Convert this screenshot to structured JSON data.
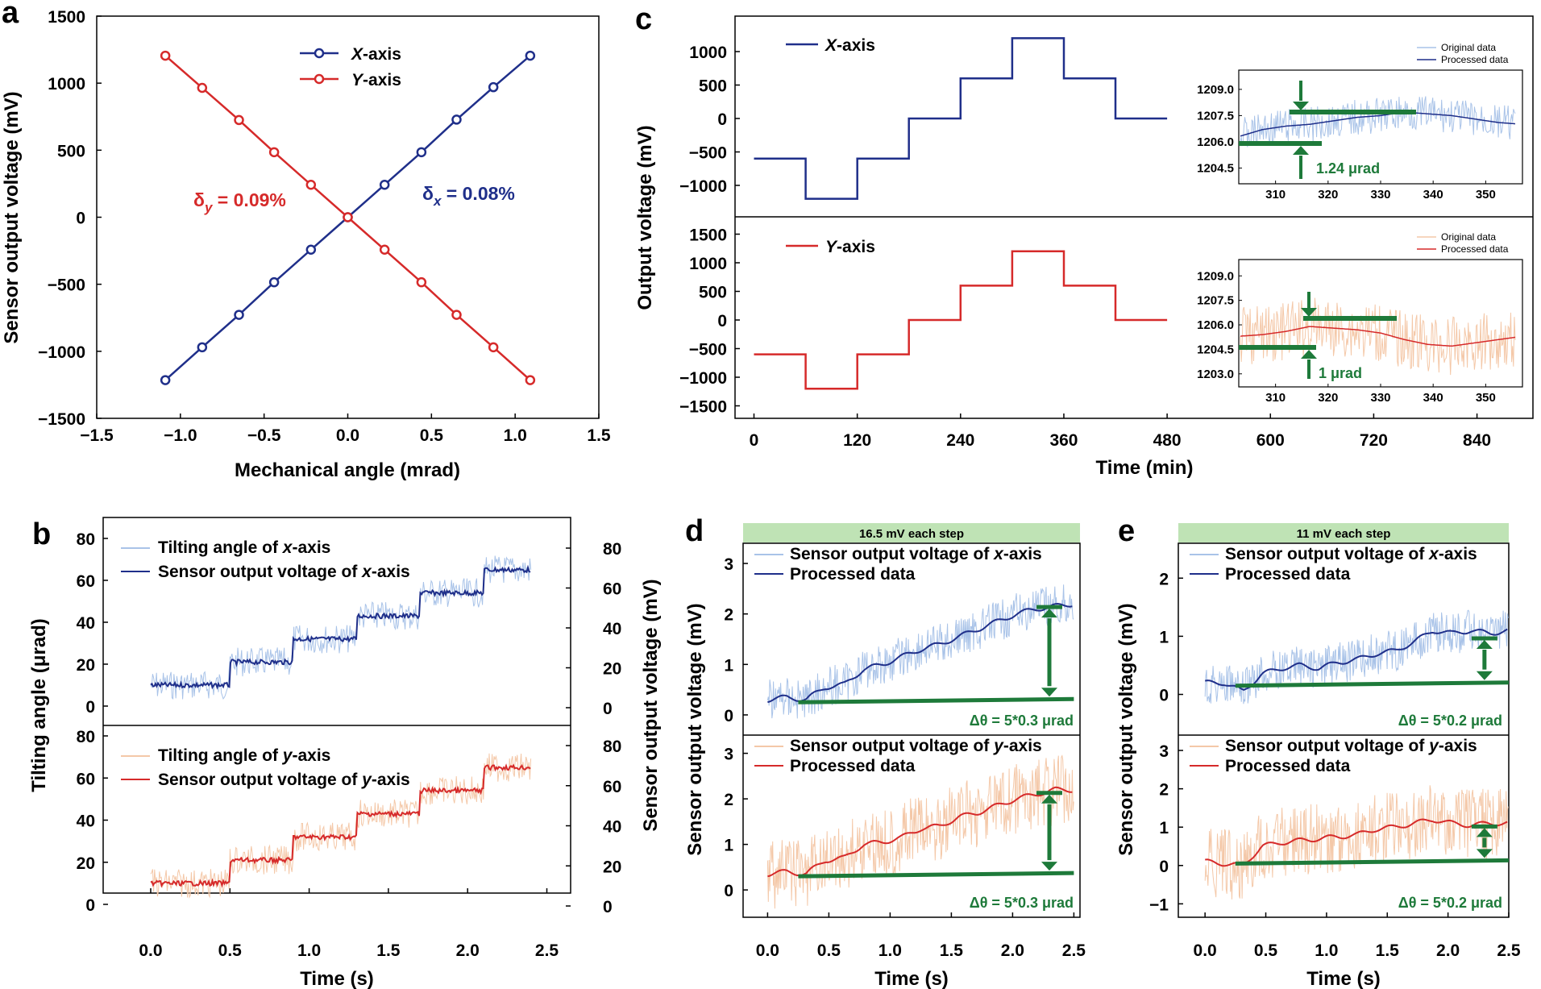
{
  "colors": {
    "blue": "#1f2f8a",
    "red": "#d62a2a",
    "lightblue": "#a9c3e8",
    "lightorange": "#f4c8a8",
    "green": "#1e7a3a",
    "banner": "#bfe3b5"
  },
  "chart_data": [
    {
      "id": "a",
      "type": "line",
      "panel_label": "a",
      "xlabel": "Mechanical angle (mrad)",
      "ylabel": "Sensor output voltage (mV)",
      "xlim": [
        -1.5,
        1.5
      ],
      "ylim": [
        -1500,
        1500
      ],
      "xticks": [
        "−1.5",
        "−1.0",
        "−0.5",
        "0.0",
        "0.5",
        "1.0",
        "1.5"
      ],
      "yticks": [
        "1500",
        "1000",
        "500",
        "0",
        "−500",
        "−1000",
        "−1500"
      ],
      "x": [
        -1.09,
        -0.87,
        -0.65,
        -0.44,
        -0.22,
        0.0,
        0.22,
        0.44,
        0.65,
        0.87,
        1.09
      ],
      "series": [
        {
          "name_italic": "X",
          "name_rest": "-axis",
          "color": "blue",
          "values": [
            -1215,
            -970,
            -728,
            -485,
            -242,
            0,
            242,
            485,
            728,
            970,
            1205
          ]
        },
        {
          "name_italic": "Y",
          "name_rest": "-axis",
          "color": "red",
          "values": [
            1205,
            965,
            725,
            485,
            242,
            0,
            -242,
            -485,
            -728,
            -970,
            -1215
          ]
        }
      ],
      "annotations": {
        "delta_y": {
          "sym": "δ",
          "sub": "y",
          "val": " = 0.09%"
        },
        "delta_x": {
          "sym": "δ",
          "sub": "x",
          "val": " = 0.08%"
        }
      }
    },
    {
      "id": "b",
      "type": "line",
      "panel_label": "b",
      "xlabel": "Time (s)",
      "ylabel_left": "Tilting angle (μrad)",
      "ylabel_right": "Sensor output voltage (mV)",
      "xlim": [
        -0.3,
        2.65
      ],
      "xticks": [
        "0.0",
        "0.5",
        "1.0",
        "1.5",
        "2.0",
        "2.5"
      ],
      "xtick_values": [
        0,
        0.5,
        1.0,
        1.5,
        2.0,
        2.5
      ],
      "left_ticks": [
        "0",
        "20",
        "40",
        "60",
        "80"
      ],
      "right_ticks": [
        "0",
        "20",
        "40",
        "60",
        "80"
      ],
      "step_times": [
        0,
        0.5,
        0.9,
        1.3,
        1.7,
        2.1,
        2.4
      ],
      "subplots": [
        {
          "legend_raw": [
            "Tilting angle of ",
            "x",
            "-axis"
          ],
          "legend_proc": [
            "Sensor output voltage of ",
            "x",
            "-axis"
          ],
          "raw_color": "lightblue",
          "proc_color": "blue",
          "levels": [
            10,
            21,
            32,
            43,
            54,
            65
          ]
        },
        {
          "legend_raw": [
            "Tilting angle of ",
            "y",
            "-axis"
          ],
          "legend_proc": [
            "Sensor output voltage of ",
            "y",
            "-axis"
          ],
          "raw_color": "lightorange",
          "proc_color": "red",
          "levels": [
            10,
            21,
            32,
            43,
            54,
            65
          ]
        }
      ]
    },
    {
      "id": "c",
      "type": "line",
      "panel_label": "c",
      "xlabel": "Time (min)",
      "ylabel": "Output voltage (mV)",
      "xticks": [
        "0",
        "120",
        "240",
        "360",
        "480",
        "600",
        "720",
        "840"
      ],
      "xtick_values": [
        0,
        120,
        240,
        360,
        480,
        600,
        720,
        840
      ],
      "step_times": [
        0,
        60,
        120,
        180,
        240,
        300,
        360,
        420,
        480
      ],
      "step_levels": [
        -600,
        -1200,
        -600,
        0,
        600,
        1200,
        600,
        0
      ],
      "subplots": [
        {
          "legend_italic": "X",
          "legend_rest": "-axis",
          "color": "blue",
          "yticks": [
            "1000",
            "500",
            "0",
            "−500",
            "−1000"
          ],
          "inset": {
            "legend": [
              "Original data",
              "Processed data"
            ],
            "yticks": [
              "1209.0",
              "1207.5",
              "1206.0",
              "1204.5"
            ],
            "xticks": [
              "310",
              "320",
              "330",
              "340",
              "350"
            ],
            "noise_color": "lightblue",
            "line_color": "blue",
            "processed": [
              1206.3,
              1206.7,
              1206.9,
              1207.0,
              1207.2,
              1207.4,
              1207.5,
              1207.7,
              1207.6,
              1207.5,
              1207.3,
              1207.1,
              1207.0
            ],
            "annotation": "1.24 μrad"
          }
        },
        {
          "legend_italic": "Y",
          "legend_rest": "-axis",
          "color": "red",
          "yticks": [
            "1500",
            "1000",
            "500",
            "0",
            "−500",
            "−1000",
            "−1500"
          ],
          "inset": {
            "legend": [
              "Original data",
              "Processed data"
            ],
            "yticks": [
              "1209.0",
              "1207.5",
              "1206.0",
              "1204.5",
              "1203.0"
            ],
            "xticks": [
              "310",
              "320",
              "330",
              "340",
              "350"
            ],
            "noise_color": "lightorange",
            "line_color": "red",
            "processed": [
              1205.3,
              1205.4,
              1205.6,
              1205.9,
              1205.8,
              1205.7,
              1205.5,
              1205.1,
              1204.8,
              1204.7,
              1204.9,
              1205.1,
              1205.3
            ],
            "annotation": "1 μrad"
          }
        }
      ]
    },
    {
      "id": "d",
      "type": "line",
      "panel_label": "d",
      "banner": "16.5 mV each step",
      "xlabel": "Time (s)",
      "ylabel": "Sensor output voltage (mV)",
      "xticks": [
        "0.0",
        "0.5",
        "1.0",
        "1.5",
        "2.0",
        "2.5"
      ],
      "xtick_values": [
        0,
        0.5,
        1.0,
        1.5,
        2.0,
        2.5
      ],
      "subplots": [
        {
          "legend_raw": [
            "Sensor output voltage of ",
            "x",
            "-axis"
          ],
          "legend_proc": [
            "Processed data"
          ],
          "yticks": [
            "0",
            "1",
            "2",
            "3"
          ],
          "ylim": [
            -0.4,
            3.4
          ],
          "raw_color": "lightblue",
          "proc_color": "blue",
          "processed": [
            0.3,
            0.35,
            0.3,
            0.55,
            0.6,
            0.9,
            1.0,
            1.15,
            1.3,
            1.4,
            1.55,
            1.7,
            1.85,
            2.0,
            2.1,
            2.15,
            2.2
          ],
          "annotation": "Δθ = 5*0.3 μrad"
        },
        {
          "legend_raw": [
            "Sensor output voltage of ",
            "y",
            "-axis"
          ],
          "legend_proc": [
            "Processed data"
          ],
          "yticks": [
            "0",
            "1",
            "2",
            "3"
          ],
          "ylim": [
            -0.6,
            3.4
          ],
          "raw_color": "lightorange",
          "proc_color": "red",
          "processed": [
            0.35,
            0.4,
            0.35,
            0.65,
            0.7,
            1.0,
            1.05,
            1.15,
            1.35,
            1.4,
            1.6,
            1.7,
            1.85,
            2.0,
            2.1,
            2.2,
            2.2
          ],
          "annotation": "Δθ = 5*0.3 μrad"
        }
      ]
    },
    {
      "id": "e",
      "type": "line",
      "panel_label": "e",
      "banner": "11 mV each step",
      "xlabel": "Time (s)",
      "ylabel": "Sensor output voltage (mV)",
      "xticks": [
        "0.0",
        "0.5",
        "1.0",
        "1.5",
        "2.0",
        "2.5"
      ],
      "xtick_values": [
        0,
        0.5,
        1.0,
        1.5,
        2.0,
        2.5
      ],
      "subplots": [
        {
          "legend_raw": [
            "Sensor output voltage of ",
            "x",
            "-axis"
          ],
          "legend_proc": [
            "Processed data"
          ],
          "yticks": [
            "0",
            "1",
            "2"
          ],
          "ylim": [
            -0.7,
            2.6
          ],
          "raw_color": "lightblue",
          "proc_color": "blue",
          "processed": [
            0.2,
            0.2,
            0.05,
            0.35,
            0.45,
            0.5,
            0.45,
            0.55,
            0.6,
            0.7,
            0.75,
            0.9,
            1.1,
            1.05,
            1.1,
            1.05,
            1.1
          ],
          "annotation": "Δθ = 5*0.2 μrad"
        },
        {
          "legend_raw": [
            "Sensor output voltage of ",
            "y",
            "-axis"
          ],
          "legend_proc": [
            "Processed data"
          ],
          "yticks": [
            "−1",
            "0",
            "1",
            "2",
            "3"
          ],
          "ylim": [
            -1.35,
            3.4
          ],
          "raw_color": "lightorange",
          "proc_color": "red",
          "processed": [
            0.1,
            0.05,
            0.0,
            0.5,
            0.6,
            0.65,
            0.7,
            0.75,
            0.8,
            0.95,
            1.0,
            1.1,
            1.2,
            1.1,
            1.05,
            1.1,
            1.1
          ],
          "annotation": "Δθ = 5*0.2 μrad"
        }
      ]
    }
  ]
}
